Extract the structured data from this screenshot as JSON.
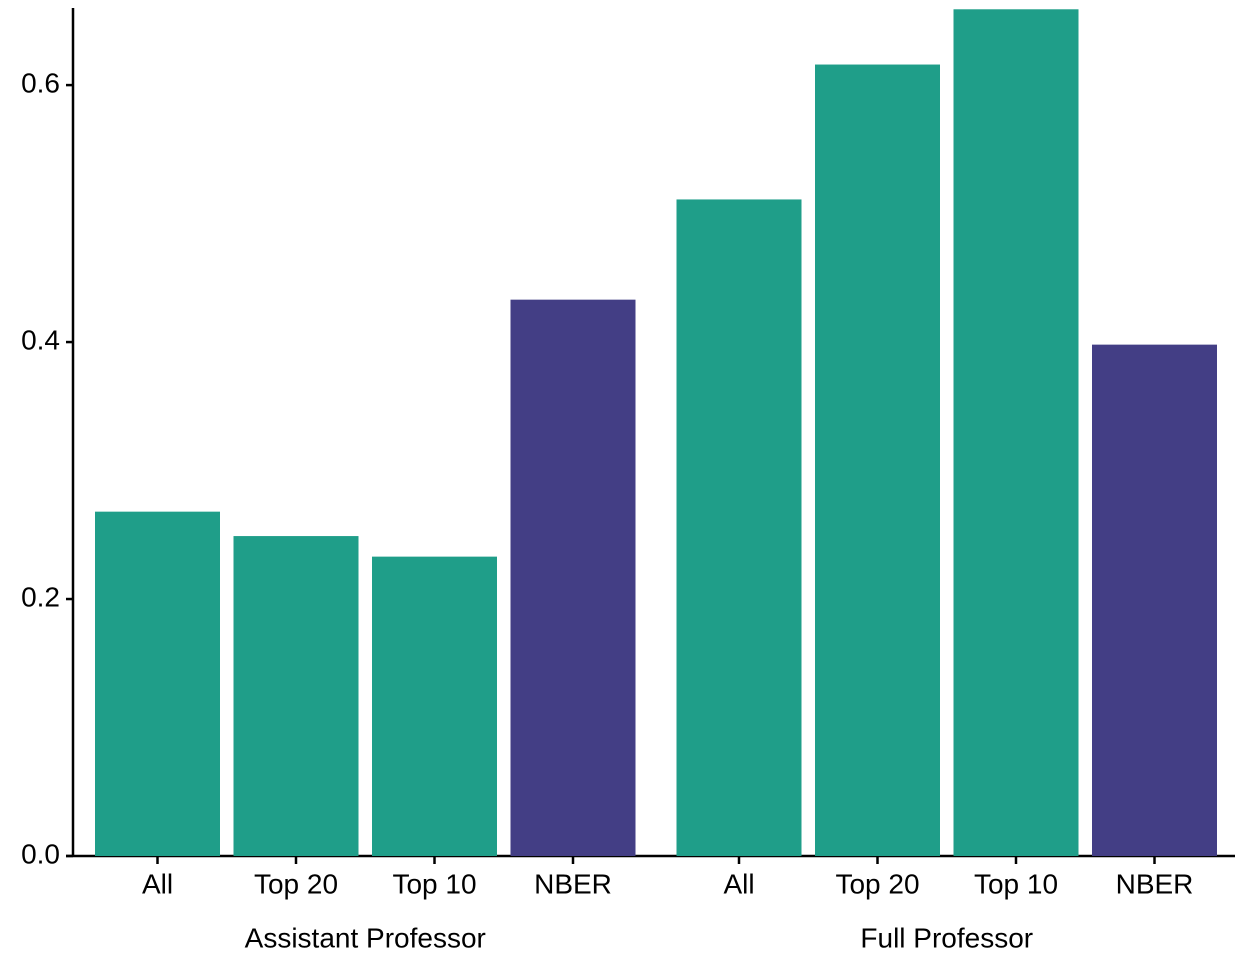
{
  "chart_data": {
    "type": "bar",
    "groups": [
      {
        "name": "Assistant Professor",
        "categories": [
          "All",
          "Top 20",
          "Top 10",
          "NBER"
        ],
        "values": [
          0.268,
          0.249,
          0.233,
          0.433
        ],
        "colors": [
          "#1f9e89",
          "#1f9e89",
          "#1f9e89",
          "#433e85"
        ]
      },
      {
        "name": "Full Professor",
        "categories": [
          "All",
          "Top 20",
          "Top 10",
          "NBER"
        ],
        "values": [
          0.511,
          0.616,
          0.659,
          0.398
        ],
        "colors": [
          "#1f9e89",
          "#1f9e89",
          "#1f9e89",
          "#433e85"
        ]
      }
    ],
    "ylim": [
      0,
      0.66
    ],
    "yticks": [
      {
        "value": 0,
        "label": "0.0"
      },
      0.2,
      0.4,
      0.6
    ]
  }
}
